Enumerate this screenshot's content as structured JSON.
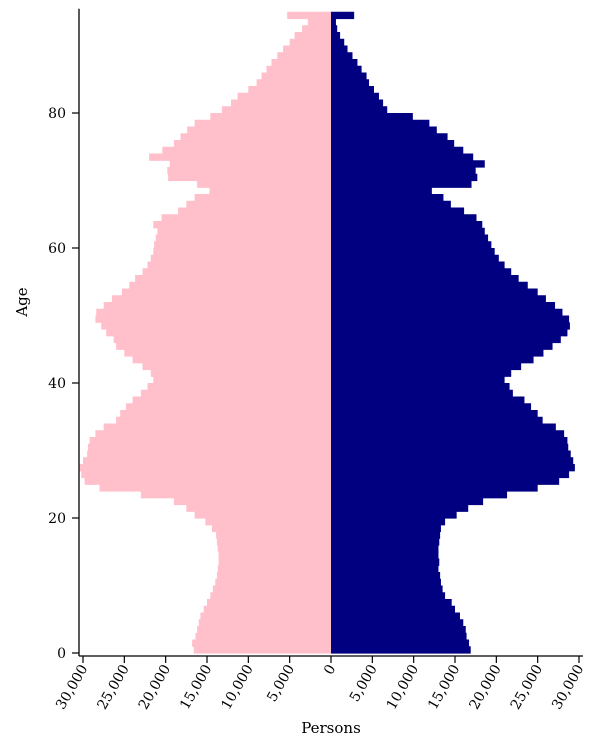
{
  "chart_data": {
    "type": "bar",
    "orientation": "horizontal-population-pyramid",
    "xlabel": "Persons",
    "ylabel": "Age",
    "x_tick_labels_left": [
      "30,000",
      "25,000",
      "20,000",
      "15,000",
      "10,000",
      "5,000",
      "0"
    ],
    "x_tick_labels_right": [
      "5,000",
      "10,000",
      "15,000",
      "20,000",
      "25,000",
      "30,000"
    ],
    "x_ticks_left": [
      30000,
      25000,
      20000,
      15000,
      10000,
      5000,
      0
    ],
    "x_ticks_right": [
      5000,
      10000,
      15000,
      20000,
      25000,
      30000
    ],
    "y_tick_labels": [
      "0",
      "20",
      "40",
      "60",
      "80"
    ],
    "y_ticks": [
      0,
      20,
      40,
      60,
      80
    ],
    "xlim": [
      -30000,
      30000
    ],
    "ylim": [
      0,
      95
    ],
    "grid": false,
    "legend": "none",
    "colors": {
      "left": "#ffc0cb",
      "right": "#000080"
    },
    "categories": [
      0,
      1,
      2,
      3,
      4,
      5,
      6,
      7,
      8,
      9,
      10,
      11,
      12,
      13,
      14,
      15,
      16,
      17,
      18,
      19,
      20,
      21,
      22,
      23,
      24,
      25,
      26,
      27,
      28,
      29,
      30,
      31,
      32,
      33,
      34,
      35,
      36,
      37,
      38,
      39,
      40,
      41,
      42,
      43,
      44,
      45,
      46,
      47,
      48,
      49,
      50,
      51,
      52,
      53,
      54,
      55,
      56,
      57,
      58,
      59,
      60,
      61,
      62,
      63,
      64,
      65,
      66,
      67,
      68,
      69,
      70,
      71,
      72,
      73,
      74,
      75,
      76,
      77,
      78,
      79,
      80,
      81,
      82,
      83,
      84,
      85,
      86,
      87,
      88,
      89,
      90,
      91,
      92,
      93,
      94
    ],
    "series": [
      {
        "side": "left",
        "values": [
          16600,
          16800,
          16400,
          16200,
          16000,
          15800,
          15400,
          15000,
          14600,
          14300,
          14000,
          13800,
          13700,
          13600,
          13600,
          13700,
          13800,
          13900,
          14400,
          15200,
          16500,
          17500,
          19000,
          23000,
          28000,
          29800,
          30200,
          30400,
          30000,
          29500,
          29400,
          29200,
          28500,
          27500,
          26000,
          25500,
          24800,
          24000,
          23000,
          22200,
          21500,
          21800,
          22800,
          24000,
          25000,
          26000,
          26300,
          27200,
          27800,
          28500,
          28400,
          27500,
          26500,
          25300,
          24400,
          23700,
          22800,
          22200,
          21800,
          21500,
          21400,
          21200,
          21000,
          21500,
          20500,
          18500,
          17500,
          16500,
          14700,
          16200,
          19700,
          19800,
          19500,
          22000,
          20400,
          19000,
          18200,
          17400,
          16500,
          14600,
          13200,
          12100,
          11300,
          10000,
          9000,
          8400,
          7800,
          7200,
          6500,
          5800,
          5000,
          4400,
          3500,
          2800,
          5300
        ]
      },
      {
        "side": "right",
        "values": [
          16900,
          16700,
          16400,
          16300,
          16000,
          15600,
          15000,
          14600,
          13800,
          13500,
          13300,
          13200,
          13000,
          13100,
          13000,
          13000,
          13100,
          13200,
          13300,
          13800,
          15200,
          16600,
          18400,
          21300,
          25000,
          27600,
          28800,
          29500,
          29300,
          29000,
          28700,
          28600,
          28200,
          27200,
          25600,
          25000,
          24200,
          23400,
          22000,
          21600,
          21000,
          21800,
          23000,
          24500,
          25700,
          26800,
          27800,
          28600,
          28900,
          28800,
          28000,
          27100,
          26000,
          25000,
          23800,
          22700,
          21800,
          21000,
          20300,
          19800,
          19400,
          19000,
          18600,
          18300,
          17600,
          16100,
          14500,
          13600,
          12200,
          17000,
          17700,
          17500,
          18600,
          17200,
          16000,
          14900,
          14100,
          12800,
          11900,
          9900,
          6800,
          6300,
          5800,
          5200,
          4600,
          4300,
          3700,
          3200,
          2600,
          2000,
          1600,
          1100,
          750,
          600,
          2800
        ]
      }
    ]
  }
}
